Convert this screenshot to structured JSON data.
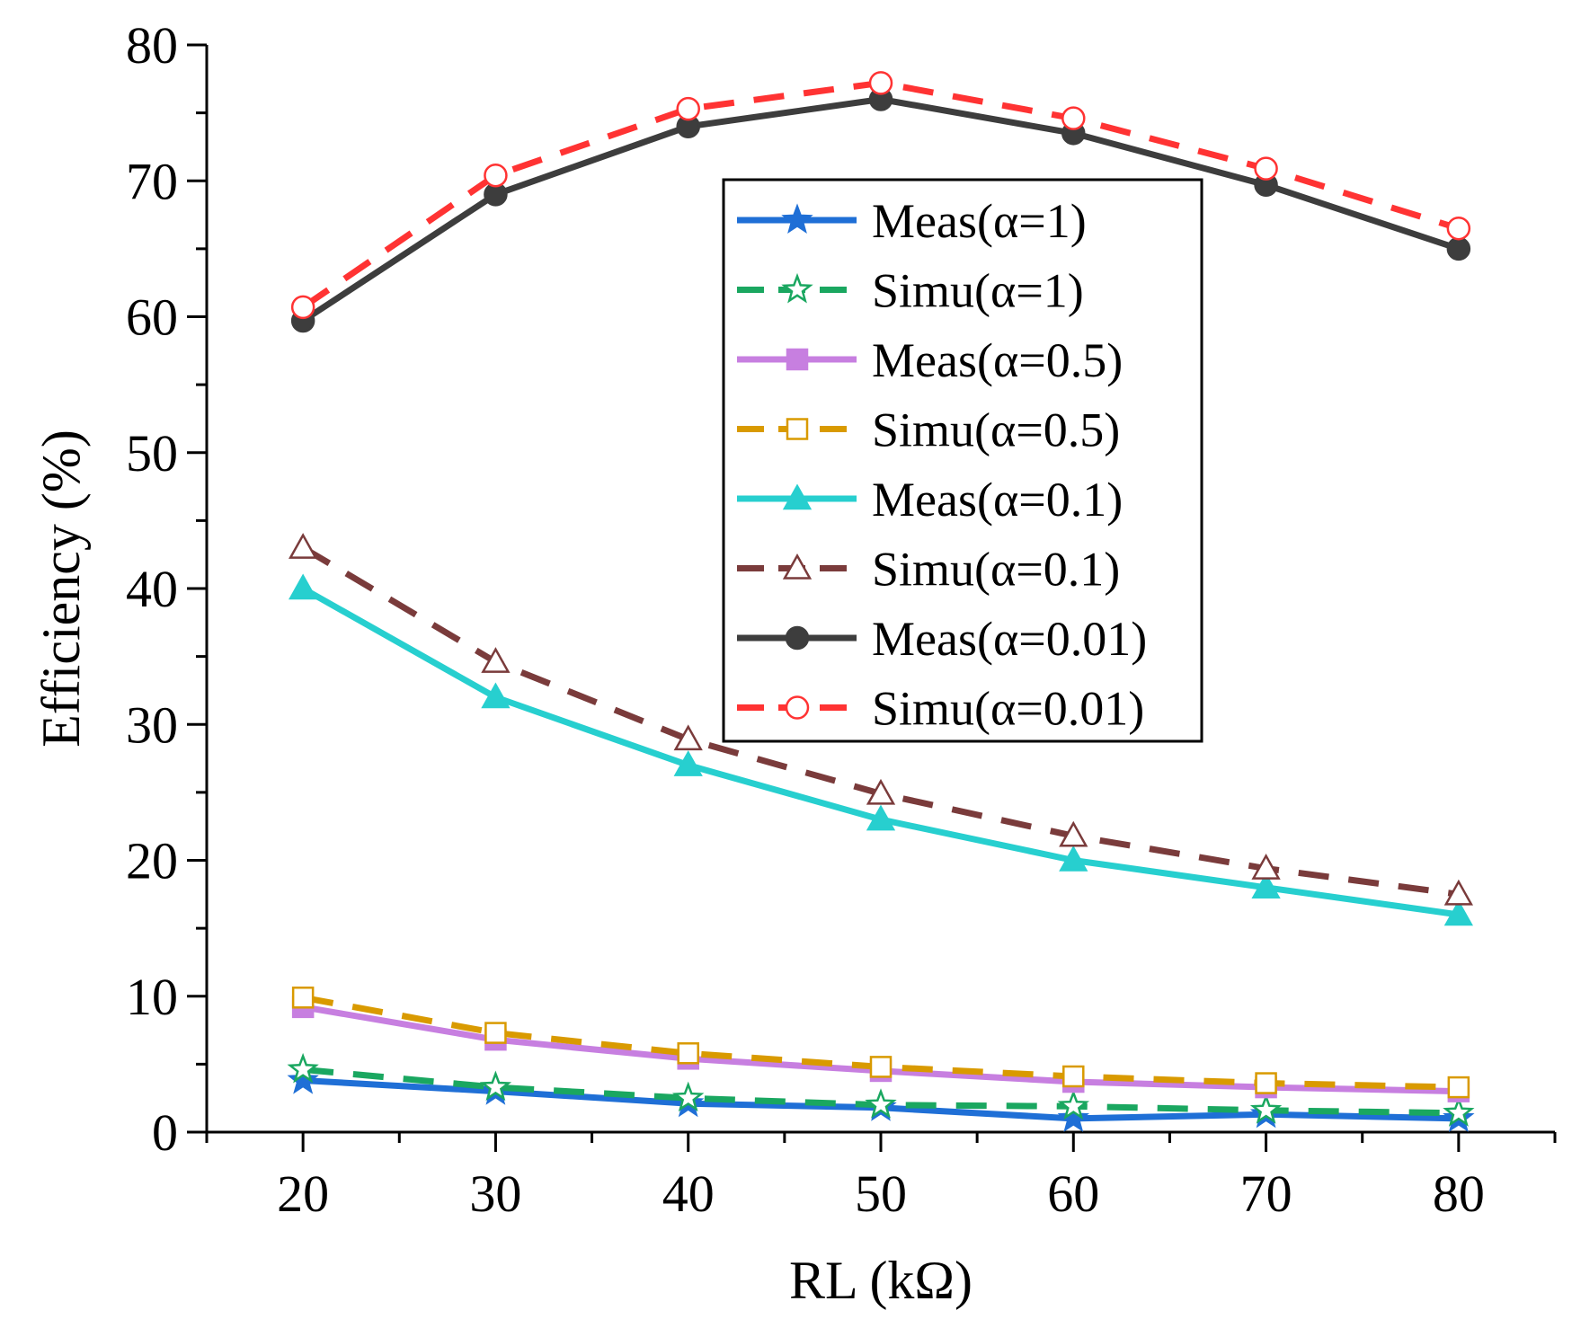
{
  "chart_data": {
    "type": "line",
    "title": "",
    "xlabel": "RL (kΩ)",
    "ylabel": "Efficiency (%)",
    "x": [
      20,
      30,
      40,
      50,
      60,
      70,
      80
    ],
    "xlim": [
      15,
      85
    ],
    "ylim": [
      0,
      80
    ],
    "xticks": [
      20,
      30,
      40,
      50,
      60,
      70,
      80
    ],
    "yticks": [
      0,
      10,
      20,
      30,
      40,
      50,
      60,
      70,
      80
    ],
    "grid": false,
    "legend_position": "upper-center",
    "series": [
      {
        "name": "Meas(α=1)",
        "values": [
          3.8,
          3.0,
          2.1,
          1.8,
          1.0,
          1.3,
          1.0
        ],
        "color": "#1f6fd6",
        "dash": "solid",
        "marker": "star",
        "filled": true
      },
      {
        "name": "Simu(α=1)",
        "values": [
          4.6,
          3.3,
          2.5,
          2.0,
          1.9,
          1.6,
          1.4
        ],
        "color": "#1aa760",
        "dash": "dashed",
        "marker": "star",
        "filled": false
      },
      {
        "name": "Meas(α=0.5)",
        "values": [
          9.2,
          6.8,
          5.4,
          4.5,
          3.7,
          3.3,
          3.0
        ],
        "color": "#c77fe0",
        "dash": "solid",
        "marker": "square",
        "filled": true
      },
      {
        "name": "Simu(α=0.5)",
        "values": [
          9.9,
          7.3,
          5.8,
          4.8,
          4.1,
          3.6,
          3.3
        ],
        "color": "#d99a00",
        "dash": "dashed",
        "marker": "square",
        "filled": false
      },
      {
        "name": "Meas(α=0.1)",
        "values": [
          40.0,
          32.0,
          27.0,
          23.0,
          20.0,
          18.0,
          16.0
        ],
        "color": "#27cfcf",
        "dash": "solid",
        "marker": "triangle",
        "filled": true
      },
      {
        "name": "Simu(α=0.1)",
        "values": [
          43.0,
          34.6,
          28.9,
          24.9,
          21.8,
          19.4,
          17.5
        ],
        "color": "#7a3b3b",
        "dash": "dashed",
        "marker": "triangle",
        "filled": false
      },
      {
        "name": "Meas(α=0.01)",
        "values": [
          59.7,
          69.0,
          74.0,
          76.0,
          73.5,
          69.7,
          65.0
        ],
        "color": "#3d3d3d",
        "dash": "solid",
        "marker": "circle",
        "filled": true
      },
      {
        "name": "Simu(α=0.01)",
        "values": [
          60.7,
          70.4,
          75.3,
          77.2,
          74.6,
          70.9,
          66.5
        ],
        "color": "#ff3333",
        "dash": "dashed",
        "marker": "circle",
        "filled": false
      }
    ]
  }
}
